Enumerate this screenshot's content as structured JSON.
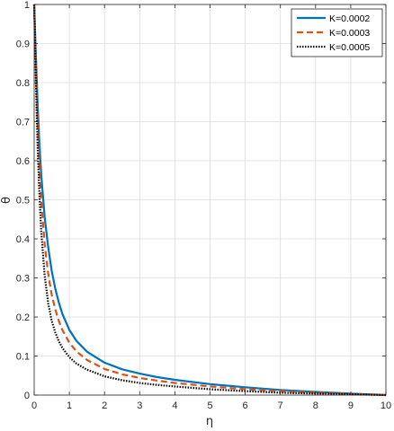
{
  "chart_data": {
    "type": "line",
    "title": "",
    "xlabel": "η",
    "ylabel": "θ",
    "xlim": [
      0,
      10
    ],
    "ylim": [
      0,
      1
    ],
    "xticks": [
      "0",
      "1",
      "2",
      "3",
      "4",
      "5",
      "6",
      "7",
      "8",
      "9",
      "10"
    ],
    "yticks": [
      "0",
      "0.1",
      "0.2",
      "0.3",
      "0.4",
      "0.5",
      "0.6",
      "0.7",
      "0.8",
      "0.9",
      "1"
    ],
    "grid": true,
    "legend_position": "top-right",
    "series": [
      {
        "name": "K=0.0002",
        "color": "#0072BD",
        "dash": "solid",
        "x": [
          0,
          0.05,
          0.1,
          0.15,
          0.2,
          0.3,
          0.4,
          0.5,
          0.6,
          0.7,
          0.8,
          1.0,
          1.2,
          1.5,
          2.0,
          2.5,
          3.0,
          3.5,
          4.0,
          5.0,
          6.0,
          7.0,
          8.0,
          9.0,
          10.0
        ],
        "y": [
          1.0,
          0.86,
          0.74,
          0.64,
          0.565,
          0.455,
          0.378,
          0.318,
          0.272,
          0.237,
          0.208,
          0.167,
          0.139,
          0.111,
          0.083,
          0.066,
          0.055,
          0.046,
          0.039,
          0.028,
          0.02,
          0.013,
          0.008,
          0.004,
          0.0
        ]
      },
      {
        "name": "K=0.0003",
        "color": "#D95319",
        "dash": "dashed",
        "x": [
          0,
          0.05,
          0.1,
          0.15,
          0.2,
          0.3,
          0.4,
          0.5,
          0.6,
          0.7,
          0.8,
          1.0,
          1.2,
          1.5,
          2.0,
          2.5,
          3.0,
          3.5,
          4.0,
          5.0,
          6.0,
          7.0,
          8.0,
          9.0,
          10.0
        ],
        "y": [
          1.0,
          0.83,
          0.69,
          0.58,
          0.5,
          0.385,
          0.31,
          0.257,
          0.219,
          0.19,
          0.167,
          0.134,
          0.112,
          0.09,
          0.067,
          0.053,
          0.044,
          0.037,
          0.031,
          0.022,
          0.015,
          0.01,
          0.006,
          0.003,
          0.0
        ]
      },
      {
        "name": "K=0.0005",
        "color": "#000000",
        "dash": "dotted",
        "x": [
          0,
          0.05,
          0.1,
          0.15,
          0.2,
          0.3,
          0.4,
          0.5,
          0.6,
          0.7,
          0.8,
          1.0,
          1.2,
          1.5,
          2.0,
          2.5,
          3.0,
          3.5,
          4.0,
          5.0,
          6.0,
          7.0,
          8.0,
          9.0,
          10.0
        ],
        "y": [
          1.0,
          0.8,
          0.63,
          0.51,
          0.42,
          0.305,
          0.235,
          0.19,
          0.16,
          0.138,
          0.121,
          0.097,
          0.081,
          0.065,
          0.048,
          0.038,
          0.031,
          0.026,
          0.022,
          0.015,
          0.01,
          0.006,
          0.004,
          0.002,
          0.0
        ]
      }
    ]
  }
}
